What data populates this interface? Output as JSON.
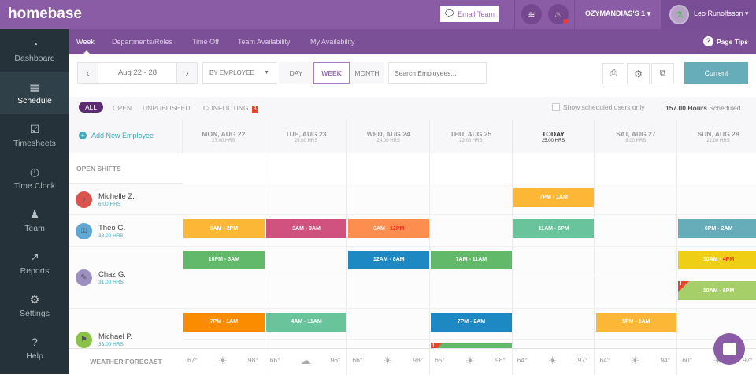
{
  "topbar": {
    "logo": "homebase",
    "email_team": "Email Team",
    "location": "OZYMANDIAS'S 1 ▾",
    "user": "Leo Runolfsson ▾"
  },
  "sidebar": [
    {
      "icon": "◔",
      "label": "Dashboard"
    },
    {
      "icon": "▦",
      "label": "Schedule",
      "active": true
    },
    {
      "icon": "☑",
      "label": "Timesheets"
    },
    {
      "icon": "◷",
      "label": "Time Clock"
    },
    {
      "icon": "♟",
      "label": "Team"
    },
    {
      "icon": "↗",
      "label": "Reports"
    },
    {
      "icon": "⚙",
      "label": "Settings"
    },
    {
      "icon": "?",
      "label": "Help"
    }
  ],
  "subnav": {
    "tabs": [
      "Week",
      "Departments/Roles",
      "Time Off",
      "Team Availability",
      "My Availability"
    ],
    "page_tips": "Page Tips"
  },
  "toolbar": {
    "date_range": "Aug 22 - 28",
    "group_by": "BY EMPLOYEE",
    "views": [
      "DAY",
      "WEEK",
      "MONTH"
    ],
    "search_placeholder": "Search Employees...",
    "current": "Current"
  },
  "filters": {
    "tabs": [
      "ALL",
      "OPEN",
      "UNPUBLISHED",
      "CONFLICTING"
    ],
    "conflict_count": "3",
    "show_scheduled": "Show scheduled users only",
    "hours_value": "157.00 Hours",
    "hours_suffix": "Scheduled"
  },
  "grid": {
    "add_employee": "Add New Employee",
    "open_shifts": "OPEN SHIFTS",
    "days": [
      {
        "label": "MON, AUG 22",
        "hrs": "27.00 HRS"
      },
      {
        "label": "TUE, AUG 23",
        "hrs": "29.00 HRS"
      },
      {
        "label": "WED, AUG 24",
        "hrs": "24.00 HRS"
      },
      {
        "label": "THU, AUG 25",
        "hrs": "22.00 HRS"
      },
      {
        "label": "TODAY",
        "hrs": "25.00 HRS",
        "today": true
      },
      {
        "label": "SAT, AUG 27",
        "hrs": "8.00 HRS"
      },
      {
        "label": "SUN, AUG 28",
        "hrs": "22.00 HRS"
      }
    ],
    "employees": [
      {
        "name": "Michelle Z.",
        "hours": "6.00 HRS",
        "avatar_color": "#d9534f",
        "icon": "♪",
        "rows": [
          [
            {
              "day": 4,
              "start": "7PM",
              "end": "1AM",
              "color": "#fbb735"
            }
          ]
        ]
      },
      {
        "name": "Theo G.",
        "hours": "38.00 HRS",
        "avatar_color": "#5fa8d3",
        "icon": "⚿",
        "rows": [
          [
            {
              "day": 0,
              "start": "6AM",
              "end": "2PM",
              "color": "#fbb735"
            },
            {
              "day": 1,
              "start": "3AM",
              "end": "9AM",
              "color": "#d2527f"
            },
            {
              "day": 2,
              "start": "3AM",
              "end": "12PM",
              "color": "#fd8e4f",
              "end_conflict": true
            },
            {
              "day": 4,
              "start": "11AM",
              "end": "6PM",
              "color": "#6ac49b"
            },
            {
              "day": 6,
              "start": "6PM",
              "end": "2AM",
              "color": "#67adb9"
            }
          ]
        ]
      },
      {
        "name": "Chaz G.",
        "hours": "31.00 HRS",
        "avatar_color": "#9d8fc2",
        "icon": "✎",
        "rows": [
          [
            {
              "day": 0,
              "start": "10PM",
              "end": "3AM",
              "color": "#62b96a"
            },
            {
              "day": 2,
              "start": "12AM",
              "end": "8AM",
              "color": "#1e88c3"
            },
            {
              "day": 3,
              "start": "7AM",
              "end": "11AM",
              "color": "#62b96a"
            },
            {
              "day": 6,
              "start": "10AM",
              "end": "4PM",
              "color": "#efcf16",
              "end_conflict": true
            }
          ],
          [
            {
              "day": 6,
              "start": "10AM",
              "end": "6PM",
              "color": "#a6cf6a",
              "flag": true
            }
          ]
        ]
      },
      {
        "name": "Michael P.",
        "hours": "33.00 HRS",
        "avatar_color": "#8bc34a",
        "icon": "⚑",
        "rows": [
          [
            {
              "day": 0,
              "start": "7PM",
              "end": "1AM",
              "color": "#fb8c00"
            },
            {
              "day": 1,
              "start": "4AM",
              "end": "11AM",
              "color": "#6ac49b"
            },
            {
              "day": 3,
              "start": "7PM",
              "end": "2AM",
              "color": "#1e88c3"
            },
            {
              "day": 5,
              "start": "5PM",
              "end": "1AM",
              "color": "#fbb735"
            }
          ],
          [
            {
              "day": 3,
              "start": "",
              "end": "",
              "color": "#62b96a",
              "flag": true
            }
          ]
        ]
      }
    ]
  },
  "weather": {
    "label": "WEATHER FORECAST",
    "days": [
      {
        "low": "67°",
        "high": "98°",
        "icon": "☀"
      },
      {
        "low": "66°",
        "high": "96°",
        "icon": "☁"
      },
      {
        "low": "66°",
        "high": "98°",
        "icon": "☀"
      },
      {
        "low": "65°",
        "high": "98°",
        "icon": "☀"
      },
      {
        "low": "64°",
        "high": "97°",
        "icon": "☀"
      },
      {
        "low": "64°",
        "high": "94°",
        "icon": "☀"
      },
      {
        "low": "60°",
        "high": "97°",
        "icon": "☀"
      }
    ]
  }
}
